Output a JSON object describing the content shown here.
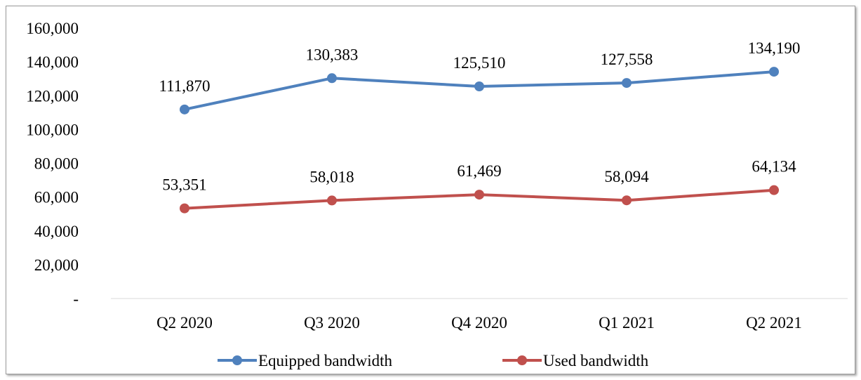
{
  "chart_data": {
    "type": "line",
    "categories": [
      "Q2 2020",
      "Q3 2020",
      "Q4 2020",
      "Q1 2021",
      "Q2 2021"
    ],
    "series": [
      {
        "name": "Equipped bandwidth",
        "color": "#4f81bd",
        "values": [
          111870,
          130383,
          125510,
          127558,
          134190
        ],
        "labels": [
          "111,870",
          "130,383",
          "125,510",
          "127,558",
          "134,190"
        ]
      },
      {
        "name": "Used bandwidth",
        "color": "#c0504d",
        "values": [
          53351,
          58018,
          61469,
          58094,
          64134
        ],
        "labels": [
          "53,351",
          "58,018",
          "61,469",
          "58,094",
          "64,134"
        ]
      }
    ],
    "ylim": [
      0,
      160000
    ],
    "yticks": [
      0,
      20000,
      40000,
      60000,
      80000,
      100000,
      120000,
      140000,
      160000
    ],
    "ytick_labels": [
      "-",
      "20,000",
      "40,000",
      "60,000",
      "80,000",
      "100,000",
      "120,000",
      "140,000",
      "160,000"
    ],
    "grid": false,
    "legend": "bottom"
  }
}
